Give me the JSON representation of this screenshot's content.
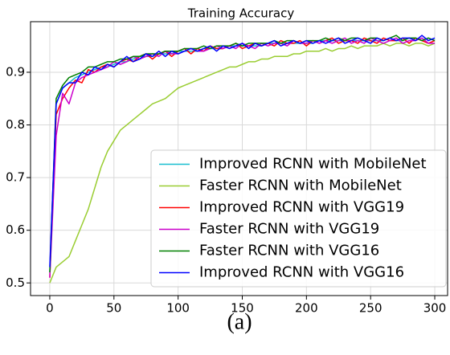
{
  "chart_data": {
    "type": "line",
    "title": "Training Accuracy",
    "caption": "(a)",
    "x": [
      0,
      5,
      10,
      15,
      20,
      25,
      30,
      35,
      40,
      45,
      50,
      55,
      60,
      65,
      70,
      75,
      80,
      85,
      90,
      95,
      100,
      105,
      110,
      115,
      120,
      125,
      130,
      135,
      140,
      145,
      150,
      155,
      160,
      165,
      170,
      175,
      180,
      185,
      190,
      195,
      200,
      205,
      210,
      215,
      220,
      225,
      230,
      235,
      240,
      245,
      250,
      255,
      260,
      265,
      270,
      275,
      280,
      285,
      290,
      295,
      300
    ],
    "xlim": [
      -15,
      310
    ],
    "xticks": [
      0,
      50,
      100,
      150,
      200,
      250,
      300
    ],
    "ylim": [
      0.476,
      0.996
    ],
    "yticks": [
      0.5,
      0.6,
      0.7,
      0.8,
      0.9
    ],
    "grid": true,
    "legend": "lower right",
    "series": [
      {
        "name": "Improved RCNN with MobileNet",
        "color": "#17becf",
        "values": [
          0.52,
          0.84,
          0.87,
          0.88,
          0.89,
          0.895,
          0.9,
          0.905,
          0.91,
          0.91,
          0.915,
          0.92,
          0.92,
          0.925,
          0.93,
          0.93,
          0.93,
          0.935,
          0.935,
          0.935,
          0.94,
          0.94,
          0.94,
          0.94,
          0.945,
          0.945,
          0.945,
          0.945,
          0.95,
          0.95,
          0.95,
          0.95,
          0.95,
          0.95,
          0.955,
          0.955,
          0.955,
          0.955,
          0.955,
          0.955,
          0.955,
          0.955,
          0.96,
          0.96,
          0.96,
          0.96,
          0.96,
          0.96,
          0.96,
          0.96,
          0.96,
          0.96,
          0.96,
          0.965,
          0.96,
          0.96,
          0.965,
          0.965,
          0.96,
          0.965,
          0.96
        ]
      },
      {
        "name": "Faster RCNN with MobileNet",
        "color": "#9acd32",
        "values": [
          0.5,
          0.53,
          0.54,
          0.55,
          0.58,
          0.61,
          0.64,
          0.68,
          0.72,
          0.75,
          0.77,
          0.79,
          0.8,
          0.81,
          0.82,
          0.83,
          0.84,
          0.845,
          0.85,
          0.86,
          0.87,
          0.875,
          0.88,
          0.885,
          0.89,
          0.895,
          0.9,
          0.905,
          0.91,
          0.91,
          0.915,
          0.92,
          0.92,
          0.925,
          0.925,
          0.93,
          0.93,
          0.93,
          0.935,
          0.935,
          0.94,
          0.94,
          0.94,
          0.945,
          0.94,
          0.945,
          0.945,
          0.95,
          0.945,
          0.95,
          0.95,
          0.95,
          0.955,
          0.95,
          0.955,
          0.955,
          0.95,
          0.955,
          0.955,
          0.95,
          0.955
        ]
      },
      {
        "name": "Improved RCNN with VGG19",
        "color": "#ff0000",
        "values": [
          0.51,
          0.82,
          0.85,
          0.87,
          0.885,
          0.88,
          0.905,
          0.9,
          0.91,
          0.915,
          0.91,
          0.92,
          0.925,
          0.92,
          0.93,
          0.935,
          0.925,
          0.935,
          0.94,
          0.93,
          0.94,
          0.945,
          0.935,
          0.945,
          0.94,
          0.95,
          0.945,
          0.945,
          0.95,
          0.955,
          0.945,
          0.95,
          0.955,
          0.95,
          0.955,
          0.95,
          0.96,
          0.955,
          0.955,
          0.96,
          0.95,
          0.96,
          0.955,
          0.96,
          0.965,
          0.955,
          0.96,
          0.96,
          0.955,
          0.965,
          0.96,
          0.955,
          0.965,
          0.96,
          0.96,
          0.965,
          0.955,
          0.965,
          0.96,
          0.955,
          0.96
        ]
      },
      {
        "name": "Faster RCNN with VGG19",
        "color": "#cc00cc",
        "values": [
          0.51,
          0.78,
          0.86,
          0.84,
          0.88,
          0.89,
          0.895,
          0.9,
          0.905,
          0.91,
          0.92,
          0.915,
          0.92,
          0.93,
          0.925,
          0.93,
          0.935,
          0.93,
          0.94,
          0.935,
          0.935,
          0.94,
          0.945,
          0.94,
          0.94,
          0.945,
          0.95,
          0.945,
          0.95,
          0.945,
          0.955,
          0.95,
          0.945,
          0.955,
          0.95,
          0.955,
          0.955,
          0.95,
          0.96,
          0.955,
          0.955,
          0.96,
          0.955,
          0.96,
          0.955,
          0.96,
          0.965,
          0.955,
          0.96,
          0.955,
          0.965,
          0.96,
          0.955,
          0.96,
          0.965,
          0.955,
          0.96,
          0.96,
          0.965,
          0.955,
          0.955
        ]
      },
      {
        "name": "Faster RCNN with VGG16",
        "color": "#008000",
        "values": [
          0.52,
          0.85,
          0.875,
          0.89,
          0.895,
          0.9,
          0.91,
          0.91,
          0.915,
          0.92,
          0.92,
          0.925,
          0.925,
          0.93,
          0.93,
          0.935,
          0.935,
          0.935,
          0.94,
          0.94,
          0.94,
          0.945,
          0.945,
          0.945,
          0.95,
          0.945,
          0.95,
          0.95,
          0.95,
          0.955,
          0.95,
          0.955,
          0.955,
          0.955,
          0.955,
          0.96,
          0.955,
          0.96,
          0.96,
          0.955,
          0.96,
          0.96,
          0.96,
          0.965,
          0.96,
          0.965,
          0.96,
          0.965,
          0.965,
          0.96,
          0.965,
          0.965,
          0.96,
          0.965,
          0.97,
          0.96,
          0.965,
          0.965,
          0.96,
          0.965,
          0.96
        ]
      },
      {
        "name": "Improved RCNN with VGG16",
        "color": "#0000ff",
        "values": [
          0.53,
          0.84,
          0.87,
          0.88,
          0.88,
          0.9,
          0.895,
          0.91,
          0.905,
          0.915,
          0.91,
          0.92,
          0.93,
          0.92,
          0.925,
          0.935,
          0.93,
          0.94,
          0.93,
          0.94,
          0.935,
          0.94,
          0.945,
          0.94,
          0.945,
          0.95,
          0.94,
          0.95,
          0.945,
          0.95,
          0.955,
          0.945,
          0.955,
          0.95,
          0.955,
          0.96,
          0.95,
          0.955,
          0.96,
          0.955,
          0.96,
          0.955,
          0.96,
          0.955,
          0.96,
          0.965,
          0.955,
          0.96,
          0.965,
          0.96,
          0.955,
          0.965,
          0.96,
          0.965,
          0.96,
          0.965,
          0.965,
          0.96,
          0.97,
          0.96,
          0.965
        ]
      }
    ]
  }
}
